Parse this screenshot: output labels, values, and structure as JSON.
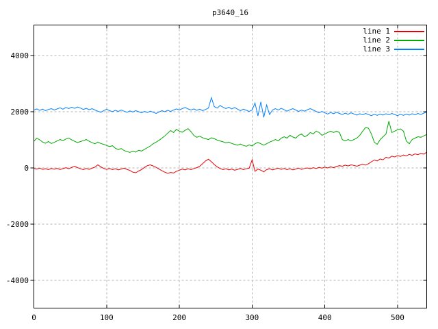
{
  "window": {
    "background": "#ffffff"
  },
  "chart_data": {
    "type": "line",
    "title": "p3640_16",
    "xlabel": "",
    "ylabel": "",
    "grid": true,
    "grid_color": "#b3b3b3",
    "border_color": "#000000",
    "legend_position": "top-right-inside",
    "x_ticks": [
      0,
      100,
      200,
      300,
      400,
      500
    ],
    "y_ticks": [
      -4000,
      -2000,
      0,
      2000,
      4000
    ],
    "x_range": [
      0,
      540
    ],
    "y_range": [
      -5000,
      5100
    ],
    "x_start": 0,
    "x_step": 4,
    "series": [
      {
        "name": "line 1",
        "color": "#e60000",
        "values": [
          -20,
          -40,
          -10,
          -50,
          -30,
          -60,
          -20,
          -45,
          -15,
          -55,
          -25,
          10,
          -30,
          20,
          60,
          10,
          -30,
          -60,
          -20,
          -50,
          -10,
          30,
          110,
          40,
          -20,
          -50,
          -20,
          -60,
          -30,
          -70,
          -40,
          -10,
          -50,
          -90,
          -150,
          -170,
          -110,
          -60,
          20,
          80,
          110,
          70,
          20,
          -40,
          -100,
          -150,
          -190,
          -160,
          -180,
          -120,
          -80,
          -40,
          -70,
          -30,
          -60,
          -20,
          10,
          60,
          150,
          250,
          310,
          220,
          120,
          40,
          -20,
          -60,
          -30,
          -70,
          -40,
          -80,
          -50,
          -20,
          -60,
          -30,
          -10,
          290,
          -120,
          -40,
          -80,
          -140,
          -60,
          -30,
          -70,
          -40,
          -10,
          -50,
          -20,
          -60,
          -30,
          -70,
          -40,
          -10,
          -50,
          -20,
          0,
          -30,
          10,
          -20,
          20,
          -10,
          30,
          0,
          40,
          10,
          50,
          80,
          60,
          100,
          70,
          110,
          90,
          60,
          100,
          130,
          100,
          150,
          220,
          280,
          250,
          320,
          290,
          380,
          350,
          420,
          390,
          440,
          410,
          460,
          430,
          480,
          450,
          500,
          470,
          520,
          490,
          560
        ]
      },
      {
        "name": "line 2",
        "color": "#00a800",
        "values": [
          950,
          1060,
          1000,
          920,
          880,
          940,
          870,
          910,
          960,
          1010,
          970,
          1030,
          1060,
          1000,
          950,
          900,
          940,
          970,
          1010,
          950,
          900,
          860,
          920,
          870,
          840,
          800,
          760,
          790,
          700,
          650,
          690,
          620,
          580,
          550,
          600,
          560,
          630,
          600,
          660,
          720,
          780,
          860,
          920,
          980,
          1060,
          1140,
          1240,
          1330,
          1260,
          1370,
          1310,
          1270,
          1340,
          1400,
          1290,
          1150,
          1090,
          1130,
          1070,
          1040,
          1010,
          1070,
          1040,
          990,
          960,
          930,
          890,
          920,
          870,
          840,
          810,
          850,
          800,
          770,
          820,
          780,
          860,
          910,
          860,
          810,
          860,
          920,
          960,
          1010,
          960,
          1060,
          1110,
          1060,
          1160,
          1100,
          1060,
          1160,
          1210,
          1110,
          1160,
          1260,
          1210,
          1310,
          1260,
          1160,
          1210,
          1260,
          1310,
          1260,
          1310,
          1260,
          1010,
          960,
          1010,
          960,
          1010,
          1060,
          1160,
          1310,
          1440,
          1410,
          1210,
          910,
          840,
          1010,
          1110,
          1210,
          1660,
          1260,
          1310,
          1360,
          1390,
          1310,
          960,
          860,
          1010,
          1060,
          1110,
          1090,
          1140,
          1190
        ]
      },
      {
        "name": "line 3",
        "color": "#0080ff",
        "values": [
          2060,
          2100,
          2050,
          2090,
          2040,
          2080,
          2110,
          2060,
          2100,
          2140,
          2090,
          2150,
          2110,
          2160,
          2120,
          2170,
          2130,
          2080,
          2120,
          2070,
          2110,
          2060,
          2020,
          1980,
          2040,
          2090,
          2040,
          2000,
          2050,
          2010,
          2060,
          2020,
          1980,
          2030,
          1990,
          2040,
          2000,
          1960,
          2010,
          1970,
          2020,
          1980,
          1940,
          1990,
          2040,
          2000,
          2050,
          2010,
          2060,
          2100,
          2060,
          2110,
          2150,
          2100,
          2060,
          2100,
          2050,
          2090,
          2040,
          2080,
          2130,
          2500,
          2180,
          2130,
          2220,
          2160,
          2110,
          2160,
          2100,
          2150,
          2090,
          2040,
          2090,
          2050,
          2010,
          2060,
          2310,
          1850,
          2350,
          1800,
          2240,
          1900,
          2060,
          2110,
          2060,
          2120,
          2070,
          2020,
          2070,
          2110,
          2060,
          2010,
          2060,
          2020,
          2070,
          2110,
          2060,
          2010,
          1960,
          2010,
          1960,
          1920,
          1970,
          1930,
          1980,
          1940,
          1900,
          1950,
          1910,
          1960,
          1920,
          1880,
          1930,
          1890,
          1940,
          1900,
          1860,
          1910,
          1870,
          1920,
          1880,
          1930,
          1890,
          1940,
          1900,
          1860,
          1910,
          1870,
          1920,
          1880,
          1930,
          1890,
          1940,
          1900,
          1950,
          1990
        ]
      }
    ]
  }
}
